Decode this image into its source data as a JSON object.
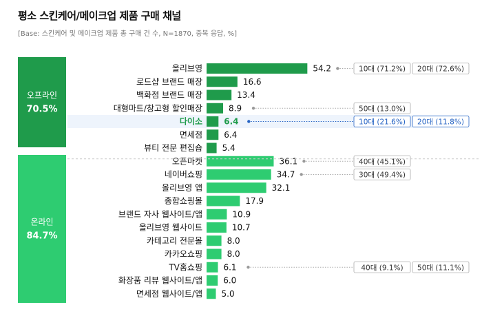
{
  "title": "평소 스킨케어/메이크업 제품 구매 채널",
  "subtitle": "[Base: 스킨케어 및 메이크업 제품 총 구매 건 수, N=1870, 중복 응답, %]",
  "colors": {
    "offline": "#1f9b4b",
    "online": "#2ecc71",
    "highlight": "#2563c4",
    "highlight_bg": "#eef4fc",
    "text": "#111111",
    "muted": "#777777"
  },
  "chart_data": {
    "type": "bar",
    "orientation": "horizontal",
    "title": "평소 스킨케어/메이크업 제품 구매 채널",
    "groups": [
      {
        "name": "오프라인",
        "total": "70.5%",
        "categories": [
          "올리브영",
          "로드샵 브랜드 매장",
          "백화점 브랜드 매장",
          "대형마트/창고형 할인매장",
          "다이소",
          "면세점",
          "뷰티 전문 편집숍"
        ],
        "values": [
          54.2,
          16.6,
          13.4,
          8.9,
          6.4,
          6.4,
          5.4
        ]
      },
      {
        "name": "온라인",
        "total": "84.7%",
        "categories": [
          "오픈마켓",
          "네이버쇼핑",
          "올리브영 앱",
          "종합쇼핑몰",
          "브랜드 자사 웹사이트/앱",
          "올리브영 웹사이트",
          "카테고리 전문몰",
          "카카오쇼핑",
          "TV홈쇼핑",
          "화장품 리뷰 웹사이트/앱",
          "면세점 웹사이트/앱"
        ],
        "values": [
          36.1,
          34.7,
          32.1,
          17.9,
          10.9,
          10.7,
          8.0,
          8.0,
          6.1,
          6.0,
          5.0
        ]
      }
    ],
    "highlight_category": "다이소",
    "annotations": [
      {
        "category": "올리브영",
        "tags": [
          "10대 (71.2%)",
          "20대 (72.6%)"
        ],
        "highlight": false
      },
      {
        "category": "대형마트/창고형 할인매장",
        "tags": [
          "50대 (13.0%)"
        ],
        "highlight": false
      },
      {
        "category": "다이소",
        "tags": [
          "10대 (21.6%)",
          "20대 (11.8%)"
        ],
        "highlight": true
      },
      {
        "category": "오픈마켓",
        "tags": [
          "40대 (45.1%)"
        ],
        "highlight": false
      },
      {
        "category": "네이버쇼핑",
        "tags": [
          "30대 (49.4%)"
        ],
        "highlight": false
      },
      {
        "category": "TV홈쇼핑",
        "tags": [
          "40대 (9.1%)",
          "50대 (11.1%)"
        ],
        "highlight": false
      }
    ]
  }
}
